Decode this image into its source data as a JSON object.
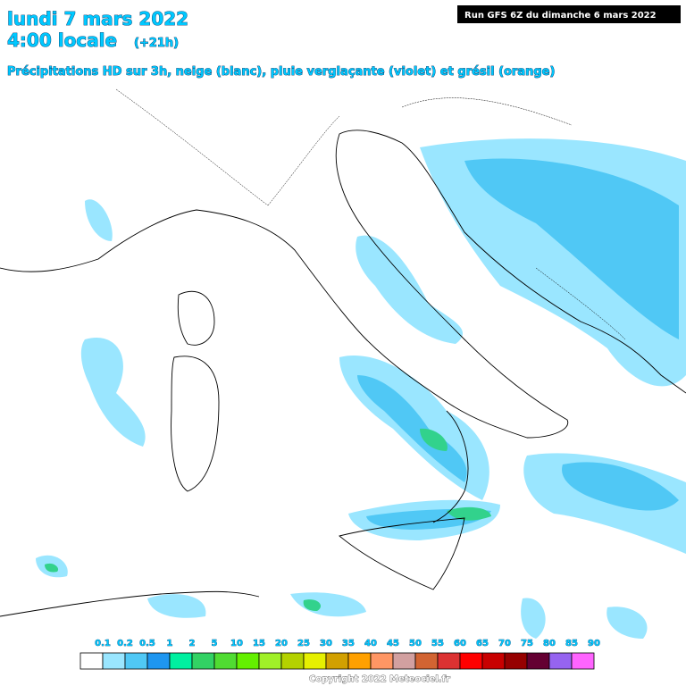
{
  "header": {
    "date": "lundi 7 mars 2022",
    "time": "4:00 locale",
    "offset": "(+21h)",
    "subtitle": "Précipitations HD sur 3h, neige (blanc), pluie verglaçante (violet) et grésil (orange)",
    "run": "Run GFS 6Z du dimanche 6 mars 2022"
  },
  "legend": {
    "entries": [
      {
        "label": "0.1",
        "color": "#ffffff"
      },
      {
        "label": "0.2",
        "color": "#9ae6ff"
      },
      {
        "label": "0.5",
        "color": "#50c8f5"
      },
      {
        "label": "1",
        "color": "#1e96f0"
      },
      {
        "label": "2",
        "color": "#00f0a0"
      },
      {
        "label": "5",
        "color": "#32d264"
      },
      {
        "label": "10",
        "color": "#50dc32"
      },
      {
        "label": "15",
        "color": "#64f000"
      },
      {
        "label": "20",
        "color": "#a0f028"
      },
      {
        "label": "25",
        "color": "#b4d200"
      },
      {
        "label": "30",
        "color": "#e6f000"
      },
      {
        "label": "35",
        "color": "#d2a000"
      },
      {
        "label": "40",
        "color": "#ffa000"
      },
      {
        "label": "45",
        "color": "#ff9664"
      },
      {
        "label": "50",
        "color": "#d2a0a0"
      },
      {
        "label": "55",
        "color": "#d26432"
      },
      {
        "label": "60",
        "color": "#dc3232"
      },
      {
        "label": "65",
        "color": "#ff0000"
      },
      {
        "label": "70",
        "color": "#c80000"
      },
      {
        "label": "75",
        "color": "#960000"
      },
      {
        "label": "80",
        "color": "#640032"
      },
      {
        "label": "85",
        "color": "#9664f0"
      },
      {
        "label": "90",
        "color": "#ff64ff"
      }
    ]
  },
  "footer": {
    "copyright": "Copyright 2022 Meteociel.fr"
  }
}
